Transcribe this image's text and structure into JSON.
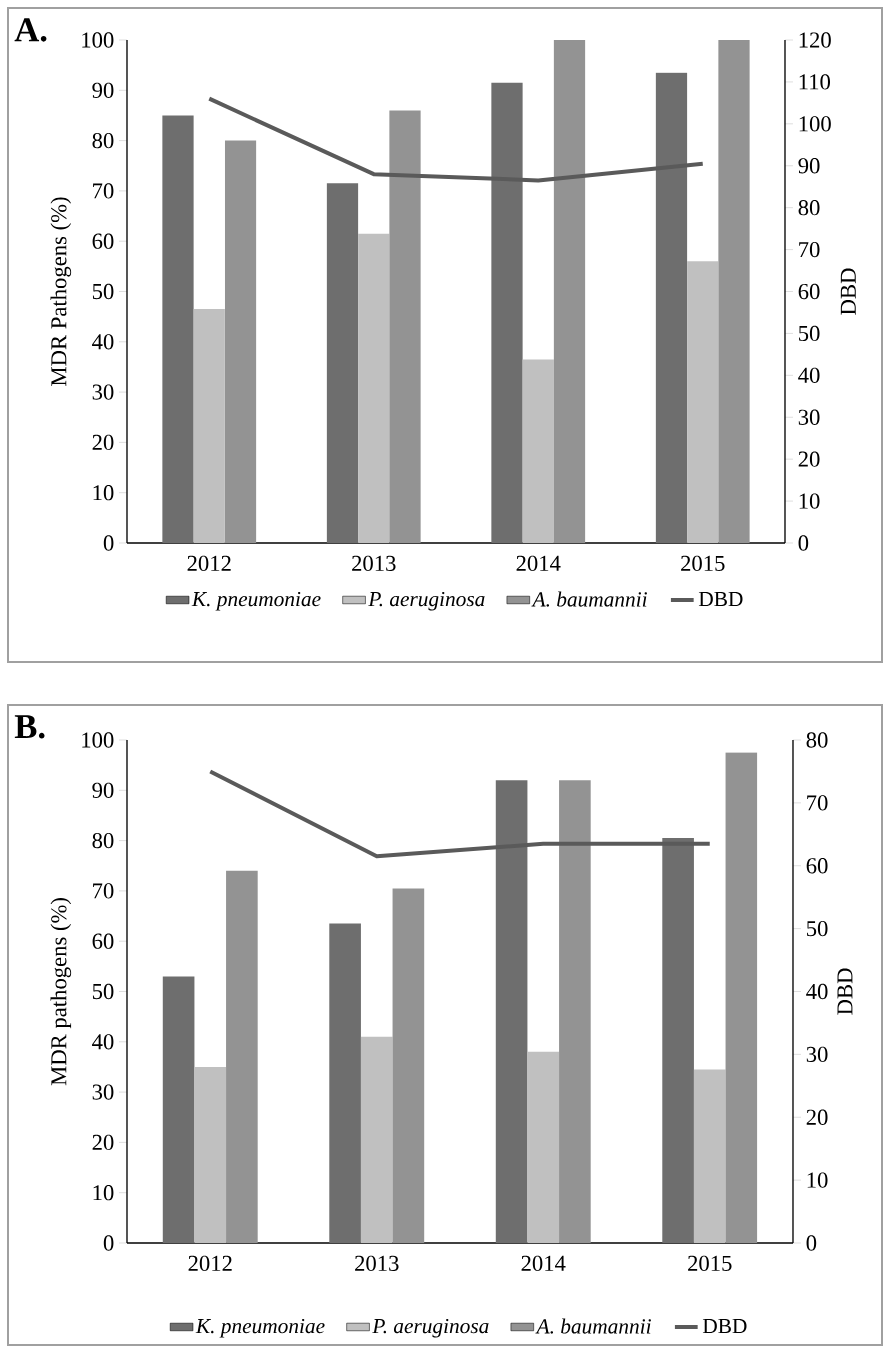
{
  "chart_data": [
    {
      "type": "bar",
      "title": "A.",
      "categories": [
        "2012",
        "2013",
        "2014",
        "2015"
      ],
      "ylabel": "MDR Pathogens (%)",
      "y2label": "DBD",
      "ylim": [
        0,
        100
      ],
      "yticks": [
        0,
        10,
        20,
        30,
        40,
        50,
        60,
        70,
        80,
        90,
        100
      ],
      "y2lim": [
        0,
        120
      ],
      "y2ticks": [
        0,
        10,
        20,
        30,
        40,
        50,
        60,
        70,
        80,
        90,
        100,
        110,
        120
      ],
      "legend": "bottom",
      "series": [
        {
          "name": "K. pneumoniae",
          "color": "#6e6e6e",
          "values": [
            85,
            71.5,
            91.5,
            93.5
          ]
        },
        {
          "name": "P. aeruginosa",
          "color": "#c0c0c0",
          "values": [
            46.5,
            61.5,
            36.5,
            56
          ]
        },
        {
          "name": "A. baumannii",
          "color": "#939393",
          "values": [
            80,
            86,
            100,
            100
          ]
        },
        {
          "name": "DBD",
          "type": "line",
          "axis": "y2",
          "color": "#5a5a5a",
          "values": [
            106,
            88,
            86.5,
            90.5
          ]
        }
      ]
    },
    {
      "type": "bar",
      "title": "B.",
      "categories": [
        "2012",
        "2013",
        "2014",
        "2015"
      ],
      "ylabel": "MDR pathogens (%)",
      "y2label": "DBD",
      "ylim": [
        0,
        100
      ],
      "yticks": [
        0,
        10,
        20,
        30,
        40,
        50,
        60,
        70,
        80,
        90,
        100
      ],
      "y2lim": [
        0,
        80
      ],
      "y2ticks": [
        0,
        10,
        20,
        30,
        40,
        50,
        60,
        70,
        80
      ],
      "legend": "bottom",
      "series": [
        {
          "name": "K. pneumoniae",
          "color": "#6e6e6e",
          "values": [
            53,
            63.5,
            92,
            80.5
          ]
        },
        {
          "name": "P. aeruginosa",
          "color": "#c0c0c0",
          "values": [
            35,
            41,
            38,
            34.5
          ]
        },
        {
          "name": "A. baumannii",
          "color": "#939393",
          "values": [
            74,
            70.5,
            92,
            97.5
          ]
        },
        {
          "name": "DBD",
          "type": "line",
          "axis": "y2",
          "color": "#5a5a5a",
          "values": [
            75,
            61.5,
            63.5,
            63.5
          ]
        }
      ]
    }
  ]
}
